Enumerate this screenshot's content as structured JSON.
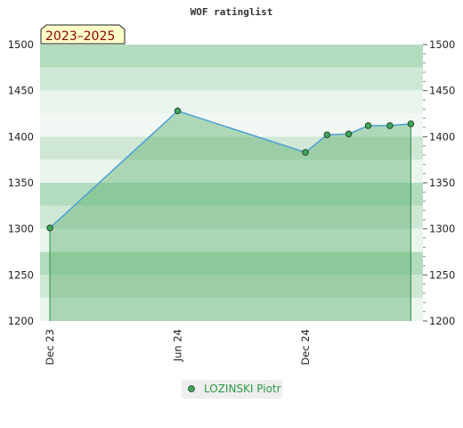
{
  "chart_data": {
    "type": "area",
    "title": "WOF ratinglist",
    "badge": "2023–2025",
    "xlabel": "",
    "ylabel": "",
    "ylim": [
      1200,
      1500
    ],
    "y_ticks": [
      1200,
      1250,
      1300,
      1350,
      1400,
      1450,
      1500
    ],
    "x_ticks": [
      {
        "date": "2023-12-01",
        "label": "Dec 23"
      },
      {
        "date": "2024-06-01",
        "label": "Jun 24"
      },
      {
        "date": "2024-12-01",
        "label": "Dec 24"
      }
    ],
    "xlim": [
      "2023-12-01",
      "2025-06-01"
    ],
    "series": [
      {
        "name": "LOZINSKI Piotr",
        "points": [
          {
            "x": "2023-12-01",
            "y": 1301
          },
          {
            "x": "2024-06-01",
            "y": 1428
          },
          {
            "x": "2024-12-01",
            "y": 1383
          },
          {
            "x": "2025-01-01",
            "y": 1402
          },
          {
            "x": "2025-02-01",
            "y": 1403
          },
          {
            "x": "2025-03-01",
            "y": 1412
          },
          {
            "x": "2025-04-01",
            "y": 1412
          },
          {
            "x": "2025-05-01",
            "y": 1414
          }
        ]
      }
    ],
    "grid": true,
    "legend_position": "bottom",
    "colors": {
      "line": "#4f9fd6",
      "marker": "#3fa55c",
      "area": "rgba(90,175,110,0.45)",
      "band_dark": "#b3dcbe",
      "band_light": "#cfe8d6",
      "band_lightest": "#eaf6ed",
      "badge_bg": "#ffffc8",
      "badge_text": "#8b0000"
    }
  }
}
